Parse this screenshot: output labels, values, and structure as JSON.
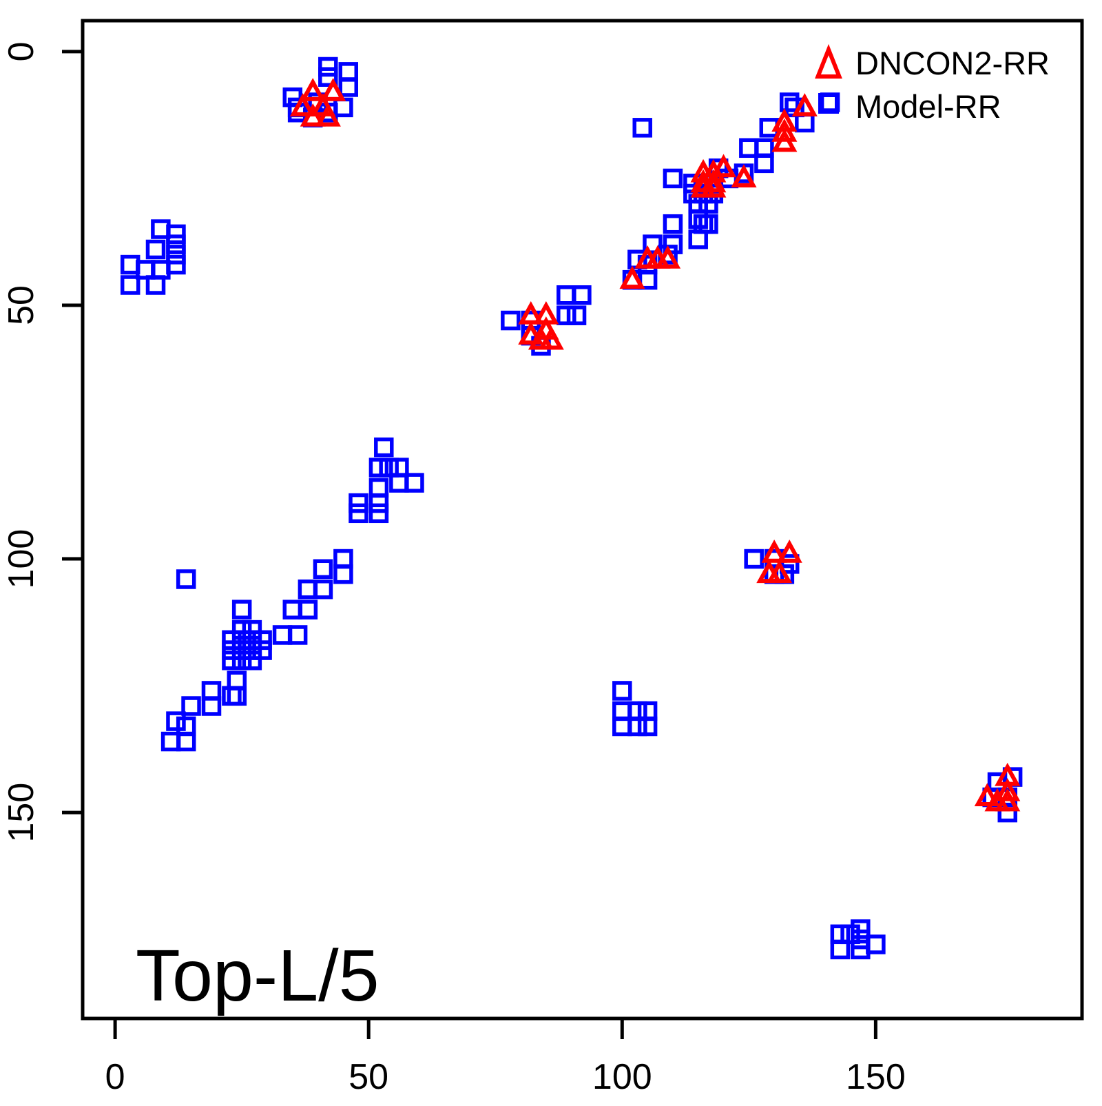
{
  "figure": {
    "annotation": "Top-L/5",
    "background": "#ffffff",
    "frame_color": "#000000"
  },
  "chart_data": {
    "type": "scatter",
    "title": "",
    "xlabel": "",
    "ylabel": "",
    "annotation": "Top-L/5",
    "x_ticks": [
      0,
      50,
      100,
      150
    ],
    "y_ticks": [
      0,
      50,
      100,
      150
    ],
    "xlim": [
      -6.4,
      190.7
    ],
    "ylim": [
      -6.1,
      190.6
    ],
    "y_axis_inverted": true,
    "grid": false,
    "legend_position": "top-right",
    "series": [
      {
        "name": "Model-RR",
        "marker": "square",
        "color": "#0000ff",
        "points": [
          [
            42,
            3
          ],
          [
            46,
            4
          ],
          [
            42,
            5
          ],
          [
            46,
            7
          ],
          [
            35,
            9
          ],
          [
            40,
            10
          ],
          [
            36,
            11
          ],
          [
            45,
            11
          ],
          [
            36,
            12
          ],
          [
            42,
            12
          ],
          [
            39,
            13
          ],
          [
            104,
            15
          ],
          [
            141,
            10
          ],
          [
            133,
            10
          ],
          [
            134,
            11
          ],
          [
            136,
            14
          ],
          [
            129,
            15
          ],
          [
            125,
            19
          ],
          [
            128,
            19
          ],
          [
            128,
            22
          ],
          [
            119,
            23
          ],
          [
            124,
            24
          ],
          [
            110,
            25
          ],
          [
            121,
            25
          ],
          [
            114,
            26
          ],
          [
            116,
            26
          ],
          [
            118,
            26
          ],
          [
            114,
            28
          ],
          [
            116,
            28
          ],
          [
            118,
            28
          ],
          [
            115,
            30
          ],
          [
            117,
            30
          ],
          [
            115,
            33
          ],
          [
            116,
            34
          ],
          [
            117,
            34
          ],
          [
            110,
            34
          ],
          [
            110,
            38
          ],
          [
            115,
            37
          ],
          [
            106,
            38
          ],
          [
            109,
            40
          ],
          [
            103,
            41
          ],
          [
            105,
            42
          ],
          [
            102,
            45
          ],
          [
            105,
            45
          ],
          [
            9,
            35
          ],
          [
            12,
            36
          ],
          [
            12,
            38
          ],
          [
            8,
            39
          ],
          [
            12,
            40
          ],
          [
            3,
            42
          ],
          [
            12,
            42
          ],
          [
            6,
            43
          ],
          [
            9,
            43
          ],
          [
            3,
            46
          ],
          [
            8,
            46
          ],
          [
            89,
            48
          ],
          [
            92,
            48
          ],
          [
            89,
            52
          ],
          [
            91,
            52
          ],
          [
            78,
            53
          ],
          [
            82,
            53
          ],
          [
            82,
            56
          ],
          [
            84,
            58
          ],
          [
            53,
            78
          ],
          [
            52,
            82
          ],
          [
            54,
            82
          ],
          [
            56,
            82
          ],
          [
            56,
            85
          ],
          [
            59,
            85
          ],
          [
            52,
            86
          ],
          [
            48,
            89
          ],
          [
            52,
            89
          ],
          [
            48,
            91
          ],
          [
            52,
            91
          ],
          [
            45,
            100
          ],
          [
            41,
            102
          ],
          [
            45,
            103
          ],
          [
            14,
            104
          ],
          [
            41,
            106
          ],
          [
            38,
            106
          ],
          [
            38,
            110
          ],
          [
            35,
            110
          ],
          [
            25,
            110
          ],
          [
            33,
            115
          ],
          [
            36,
            115
          ],
          [
            25,
            114
          ],
          [
            27,
            114
          ],
          [
            23,
            116
          ],
          [
            25,
            116
          ],
          [
            27,
            116
          ],
          [
            29,
            116
          ],
          [
            23,
            118
          ],
          [
            25,
            118
          ],
          [
            27,
            118
          ],
          [
            29,
            118
          ],
          [
            23,
            120
          ],
          [
            25,
            120
          ],
          [
            27,
            120
          ],
          [
            24,
            124
          ],
          [
            19,
            126
          ],
          [
            23,
            127
          ],
          [
            24,
            127
          ],
          [
            19,
            129
          ],
          [
            15,
            129
          ],
          [
            12,
            132
          ],
          [
            14,
            133
          ],
          [
            11,
            136
          ],
          [
            14,
            136
          ],
          [
            126,
            100
          ],
          [
            130,
            100
          ],
          [
            133,
            101
          ],
          [
            130,
            103
          ],
          [
            132,
            103
          ],
          [
            100,
            126
          ],
          [
            100,
            130
          ],
          [
            103,
            130
          ],
          [
            105,
            130
          ],
          [
            100,
            133
          ],
          [
            103,
            133
          ],
          [
            105,
            133
          ],
          [
            177,
            143
          ],
          [
            174,
            144
          ],
          [
            173,
            147
          ],
          [
            176,
            147
          ],
          [
            176,
            150
          ],
          [
            147,
            173
          ],
          [
            143,
            174
          ],
          [
            145,
            174
          ],
          [
            147,
            175
          ],
          [
            150,
            176
          ],
          [
            143,
            177
          ],
          [
            147,
            177
          ]
        ]
      },
      {
        "name": "DNCON2-RR",
        "marker": "triangle",
        "color": "#ff0000",
        "points": [
          [
            39,
            8
          ],
          [
            43,
            8
          ],
          [
            37,
            11
          ],
          [
            41,
            11
          ],
          [
            39,
            13
          ],
          [
            42,
            13
          ],
          [
            136,
            11
          ],
          [
            132,
            14
          ],
          [
            132,
            16
          ],
          [
            132,
            18
          ],
          [
            120,
            23
          ],
          [
            116,
            24
          ],
          [
            118,
            24
          ],
          [
            124,
            25
          ],
          [
            116,
            26
          ],
          [
            118,
            26
          ],
          [
            116,
            27
          ],
          [
            118,
            27
          ],
          [
            105,
            41
          ],
          [
            107,
            41
          ],
          [
            109,
            41
          ],
          [
            102,
            45
          ],
          [
            82,
            52
          ],
          [
            85,
            52
          ],
          [
            85,
            55
          ],
          [
            82,
            56
          ],
          [
            84,
            57
          ],
          [
            86,
            57
          ],
          [
            130,
            99
          ],
          [
            133,
            99
          ],
          [
            129,
            103
          ],
          [
            131,
            103
          ],
          [
            176,
            143
          ],
          [
            176,
            146
          ],
          [
            172,
            147
          ],
          [
            174,
            148
          ],
          [
            176,
            148
          ]
        ]
      }
    ]
  }
}
